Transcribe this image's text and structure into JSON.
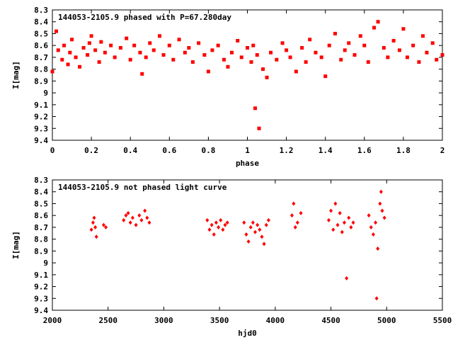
{
  "chart_data": [
    {
      "type": "scatter",
      "title": "144053-2105.9 phased with P=67.280day",
      "xlabel": "phase",
      "ylabel": "I[mag]",
      "xlim": [
        0,
        2
      ],
      "ylim": [
        8.3,
        9.4
      ],
      "y_inverted": true,
      "x_ticks": [
        "0",
        "0.2",
        "0.4",
        "0.6",
        "0.8",
        "1",
        "1.2",
        "1.4",
        "1.6",
        "1.8",
        "2"
      ],
      "y_ticks": [
        "8.3",
        "8.4",
        "8.5",
        "8.6",
        "8.7",
        "8.8",
        "8.9",
        "9",
        "9.1",
        "9.2",
        "9.3",
        "9.4"
      ],
      "marker_color": "#ff0000",
      "marker": "filled-square",
      "series": [
        {
          "x": [
            0.0,
            0.02,
            0.03,
            0.05,
            0.06,
            0.08,
            0.09,
            0.1,
            0.12,
            0.14,
            0.16,
            0.18,
            0.19,
            0.2,
            0.22,
            0.24,
            0.25,
            0.27,
            0.3,
            0.32,
            0.35,
            0.38,
            0.4,
            0.42,
            0.45,
            0.46,
            0.48,
            0.5,
            0.52,
            0.55,
            0.57,
            0.6,
            0.62,
            0.65,
            0.68,
            0.7,
            0.72,
            0.75,
            0.78,
            0.8,
            0.82,
            0.85,
            0.88,
            0.9,
            0.92,
            0.95,
            0.97,
            1.0,
            1.02,
            1.03,
            1.04,
            1.05,
            1.06,
            1.08,
            1.1,
            1.12,
            1.15,
            1.18,
            1.2,
            1.22,
            1.25,
            1.28,
            1.3,
            1.32,
            1.35,
            1.38,
            1.4,
            1.42,
            1.45,
            1.48,
            1.5,
            1.52,
            1.55,
            1.58,
            1.6,
            1.62,
            1.65,
            1.67,
            1.7,
            1.72,
            1.75,
            1.78,
            1.8,
            1.82,
            1.85,
            1.88,
            1.9,
            1.92,
            1.95,
            1.97,
            2.0
          ],
          "y": [
            8.82,
            8.48,
            8.64,
            8.72,
            8.6,
            8.76,
            8.66,
            8.55,
            8.7,
            8.78,
            8.62,
            8.68,
            8.58,
            8.52,
            8.64,
            8.74,
            8.57,
            8.66,
            8.6,
            8.7,
            8.62,
            8.54,
            8.72,
            8.6,
            8.66,
            8.84,
            8.7,
            8.58,
            8.64,
            8.52,
            8.68,
            8.6,
            8.72,
            8.55,
            8.66,
            8.62,
            8.74,
            8.58,
            8.68,
            8.82,
            8.64,
            8.6,
            8.72,
            8.78,
            8.66,
            8.56,
            8.7,
            8.62,
            8.74,
            8.6,
            9.13,
            8.68,
            9.3,
            8.8,
            8.87,
            8.66,
            8.72,
            8.58,
            8.64,
            8.7,
            8.82,
            8.62,
            8.74,
            8.55,
            8.66,
            8.7,
            8.86,
            8.6,
            8.5,
            8.72,
            8.64,
            8.58,
            8.68,
            8.52,
            8.6,
            8.74,
            8.45,
            8.4,
            8.62,
            8.7,
            8.56,
            8.64,
            8.46,
            8.7,
            8.6,
            8.74,
            8.52,
            8.66,
            8.58,
            8.72,
            8.68
          ]
        }
      ]
    },
    {
      "type": "scatter",
      "title": "144053-2105.9 not phased light curve",
      "xlabel": "hjd0",
      "ylabel": "I[mag]",
      "xlim": [
        2000,
        5500
      ],
      "ylim": [
        8.3,
        9.4
      ],
      "y_inverted": true,
      "x_ticks": [
        "2000",
        "2500",
        "3000",
        "3500",
        "4000",
        "4500",
        "5000",
        "5500"
      ],
      "y_ticks": [
        "8.3",
        "8.4",
        "8.5",
        "8.6",
        "8.7",
        "8.8",
        "8.9",
        "9",
        "9.1",
        "9.2",
        "9.3",
        "9.4"
      ],
      "marker_color": "#ff0000",
      "marker": "diamond",
      "series": [
        {
          "x": [
            2350,
            2365,
            2375,
            2385,
            2395,
            2460,
            2480,
            2640,
            2660,
            2680,
            2700,
            2720,
            2750,
            2780,
            2800,
            2830,
            2850,
            2870,
            3390,
            3410,
            3430,
            3450,
            3470,
            3490,
            3510,
            3530,
            3550,
            3570,
            3720,
            3740,
            3760,
            3780,
            3800,
            3820,
            3840,
            3860,
            3880,
            3900,
            3920,
            3940,
            4150,
            4165,
            4180,
            4200,
            4230,
            4480,
            4500,
            4520,
            4540,
            4560,
            4580,
            4600,
            4620,
            4640,
            4660,
            4680,
            4700,
            4840,
            4860,
            4880,
            4900,
            4910,
            4920,
            4940,
            4950,
            4960,
            4980
          ],
          "y": [
            8.72,
            8.66,
            8.62,
            8.7,
            8.78,
            8.68,
            8.7,
            8.64,
            8.6,
            8.58,
            8.66,
            8.62,
            8.68,
            8.6,
            8.64,
            8.56,
            8.62,
            8.66,
            8.64,
            8.72,
            8.68,
            8.76,
            8.66,
            8.7,
            8.64,
            8.72,
            8.68,
            8.66,
            8.66,
            8.76,
            8.82,
            8.7,
            8.66,
            8.74,
            8.68,
            8.72,
            8.78,
            8.84,
            8.68,
            8.64,
            8.6,
            8.5,
            8.7,
            8.66,
            8.58,
            8.64,
            8.56,
            8.72,
            8.5,
            8.68,
            8.58,
            8.74,
            8.66,
            9.13,
            8.62,
            8.7,
            8.66,
            8.6,
            8.7,
            8.76,
            8.66,
            9.3,
            8.88,
            8.5,
            8.4,
            8.56,
            8.62
          ]
        }
      ]
    }
  ]
}
